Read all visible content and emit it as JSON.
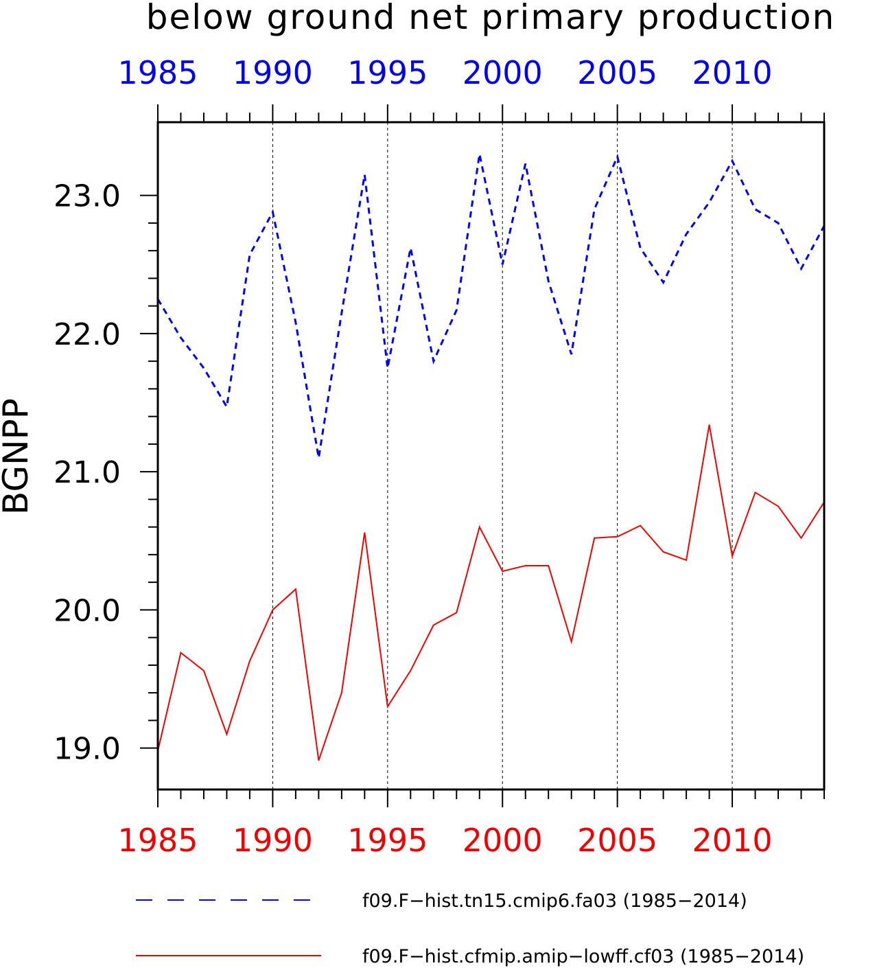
{
  "chart_data": {
    "type": "line",
    "title": "below ground net primary production",
    "ylabel": "BGNPP",
    "xlabel": "",
    "xlim": [
      1985,
      2014
    ],
    "ylim": [
      18.7,
      23.53
    ],
    "x_ticks": [
      1985,
      1990,
      1995,
      2000,
      2005,
      2010
    ],
    "y_ticks": [
      "19.0",
      "20.0",
      "21.0",
      "22.0",
      "23.0"
    ],
    "grid": "vertical dashed lines at labeled years",
    "legend_position": "bottom",
    "x": [
      1985,
      1986,
      1987,
      1988,
      1989,
      1990,
      1991,
      1992,
      1993,
      1994,
      1995,
      1996,
      1997,
      1998,
      1999,
      2000,
      2001,
      2002,
      2003,
      2004,
      2005,
      2006,
      2007,
      2008,
      2009,
      2010,
      2011,
      2012,
      2013,
      2014
    ],
    "series": [
      {
        "name": "f09.F−hist.tn15.cmip6.fa03 (1985−2014)",
        "color": "#0000ee",
        "style": "dashed",
        "top_axis_color": "#0000ee",
        "values": [
          22.25,
          21.97,
          21.75,
          21.47,
          22.57,
          22.88,
          22.08,
          21.1,
          22.15,
          23.15,
          21.75,
          22.62,
          21.8,
          22.17,
          23.3,
          22.5,
          23.23,
          22.38,
          21.85,
          22.9,
          23.28,
          22.62,
          22.37,
          22.72,
          22.95,
          23.25,
          22.9,
          22.8,
          22.47,
          22.78
        ]
      },
      {
        "name": "f09.F−hist.cfmip.amip−lowff.cf03 (1985−2014)",
        "color": "#ee0000",
        "style": "solid",
        "bottom_axis_color": "#ee0000",
        "values": [
          18.98,
          19.69,
          19.56,
          19.1,
          19.63,
          20.0,
          20.15,
          18.91,
          19.4,
          20.56,
          19.3,
          19.56,
          19.89,
          19.98,
          20.6,
          20.28,
          20.32,
          20.32,
          19.77,
          20.52,
          20.53,
          20.61,
          20.42,
          20.36,
          21.34,
          20.39,
          20.85,
          20.75,
          20.52,
          20.78
        ]
      }
    ]
  }
}
